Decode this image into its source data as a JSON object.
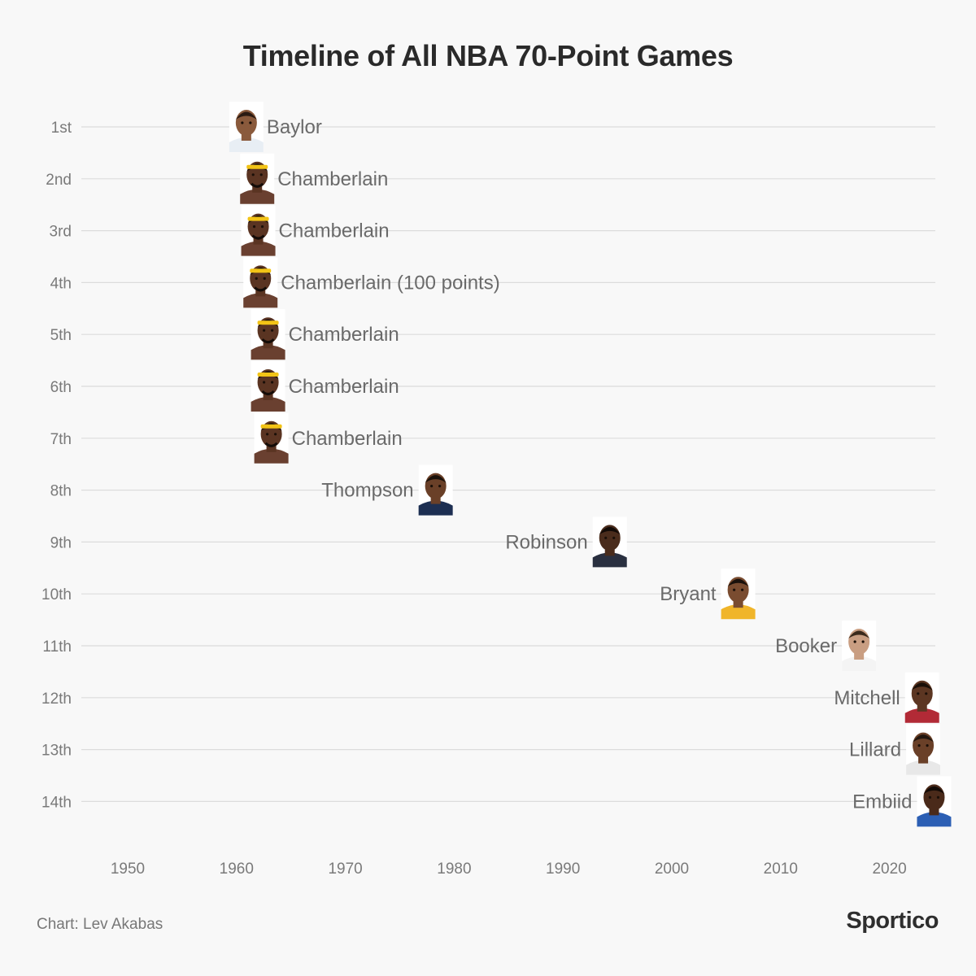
{
  "chart_data": {
    "type": "scatter",
    "title": "Timeline of All NBA 70-Point Games",
    "xlabel": "",
    "ylabel": "",
    "xlim": [
      1945,
      2025
    ],
    "x_ticks": [
      "1950",
      "1960",
      "1970",
      "1980",
      "1990",
      "2000",
      "2010",
      "2020"
    ],
    "y_categories": [
      "1st",
      "2nd",
      "3rd",
      "4th",
      "5th",
      "6th",
      "7th",
      "8th",
      "9th",
      "10th",
      "11th",
      "12th",
      "13th",
      "14th"
    ],
    "grid": "horizontal",
    "points": [
      {
        "rank": "1st",
        "year": 1960.9,
        "player": "Baylor",
        "label_side": "right",
        "face": "baylor"
      },
      {
        "rank": "2nd",
        "year": 1961.9,
        "player": "Chamberlain",
        "label_side": "right",
        "face": "chamberlain"
      },
      {
        "rank": "3rd",
        "year": 1962.0,
        "player": "Chamberlain",
        "label_side": "right",
        "face": "chamberlain"
      },
      {
        "rank": "4th",
        "year": 1962.2,
        "player": "Chamberlain (100 points)",
        "label_side": "right",
        "face": "chamberlain"
      },
      {
        "rank": "5th",
        "year": 1962.9,
        "player": "Chamberlain",
        "label_side": "right",
        "face": "chamberlain"
      },
      {
        "rank": "6th",
        "year": 1962.9,
        "player": "Chamberlain",
        "label_side": "right",
        "face": "chamberlain"
      },
      {
        "rank": "7th",
        "year": 1963.2,
        "player": "Chamberlain",
        "label_side": "right",
        "face": "chamberlain"
      },
      {
        "rank": "8th",
        "year": 1978.3,
        "player": "Thompson",
        "label_side": "left",
        "face": "thompson"
      },
      {
        "rank": "9th",
        "year": 1994.3,
        "player": "Robinson",
        "label_side": "left",
        "face": "robinson"
      },
      {
        "rank": "10th",
        "year": 2006.1,
        "player": "Bryant",
        "label_side": "left",
        "face": "bryant"
      },
      {
        "rank": "11th",
        "year": 2017.2,
        "player": "Booker",
        "label_side": "left",
        "face": "booker"
      },
      {
        "rank": "12th",
        "year": 2023.0,
        "player": "Mitchell",
        "label_side": "left",
        "face": "mitchell"
      },
      {
        "rank": "13th",
        "year": 2023.1,
        "player": "Lillard",
        "label_side": "left",
        "face": "lillard"
      },
      {
        "rank": "14th",
        "year": 2024.1,
        "player": "Embiid",
        "label_side": "left",
        "face": "embiid"
      }
    ]
  },
  "faces": {
    "baylor": {
      "skin": "#8a5a3c",
      "hair": "#2a1a12",
      "jersey": "#e8eef4",
      "band": ""
    },
    "chamberlain": {
      "skin": "#5a3422",
      "hair": "#140c08",
      "jersey": "#6a4030",
      "band": "#f2c316"
    },
    "thompson": {
      "skin": "#6a4028",
      "hair": "#1a110a",
      "jersey": "#1d2f52",
      "band": ""
    },
    "robinson": {
      "skin": "#4a2c1c",
      "hair": "#120a06",
      "jersey": "#2a3040",
      "band": ""
    },
    "bryant": {
      "skin": "#7a4c30",
      "hair": "#1a110b",
      "jersey": "#f0b52a",
      "band": ""
    },
    "booker": {
      "skin": "#c99e82",
      "hair": "#3a2a1c",
      "jersey": "#f4f4f4",
      "band": ""
    },
    "mitchell": {
      "skin": "#5c3622",
      "hair": "#1a0f08",
      "jersey": "#b22a36",
      "band": ""
    },
    "lillard": {
      "skin": "#6a4028",
      "hair": "#22160e",
      "jersey": "#e8e8e8",
      "band": ""
    },
    "embiid": {
      "skin": "#4a2a1a",
      "hair": "#120a06",
      "jersey": "#2c5fb4",
      "band": ""
    }
  },
  "footer": {
    "credit": "Chart: Lev Akabas",
    "brand": "Sportico"
  },
  "colors": {
    "background": "#f8f8f8",
    "gridline": "#dcdcdc",
    "tick_label": "#7a7a7a",
    "name_label": "#6a6a6a",
    "title": "#2a2a2a"
  }
}
